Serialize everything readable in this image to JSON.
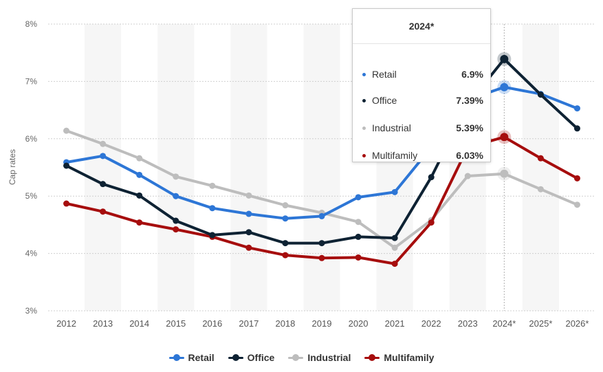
{
  "chart_data": {
    "type": "line",
    "ylabel": "Cap rates",
    "ylim": [
      3,
      8
    ],
    "yticks": [
      "3%",
      "4%",
      "5%",
      "6%",
      "7%",
      "8%"
    ],
    "yticks_values": [
      3,
      4,
      5,
      6,
      7,
      8
    ],
    "categories": [
      "2012",
      "2013",
      "2014",
      "2015",
      "2016",
      "2017",
      "2018",
      "2019",
      "2020",
      "2021",
      "2022",
      "2023",
      "2024*",
      "2025*",
      "2026*"
    ],
    "grid": true,
    "legend_position": "bottom-center",
    "series": [
      {
        "name": "Retail",
        "color": "#2d76d6",
        "values": [
          5.59,
          5.7,
          5.37,
          5.0,
          4.79,
          4.69,
          4.61,
          4.65,
          4.98,
          5.07,
          5.85,
          6.68,
          6.9,
          6.78,
          6.53
        ]
      },
      {
        "name": "Office",
        "color": "#0e2233",
        "values": [
          5.53,
          5.21,
          5.01,
          4.57,
          4.32,
          4.37,
          4.18,
          4.18,
          4.29,
          4.27,
          5.33,
          6.6,
          7.39,
          6.77,
          6.18
        ]
      },
      {
        "name": "Industrial",
        "color": "#bdbdbd",
        "values": [
          6.14,
          5.91,
          5.66,
          5.34,
          5.18,
          5.01,
          4.84,
          4.71,
          4.55,
          4.1,
          4.58,
          5.35,
          5.39,
          5.12,
          4.85
        ]
      },
      {
        "name": "Multifamily",
        "color": "#a60d0d",
        "values": [
          4.87,
          4.73,
          4.54,
          4.42,
          4.29,
          4.1,
          3.97,
          3.92,
          3.93,
          3.82,
          4.54,
          5.85,
          6.03,
          5.66,
          5.31
        ]
      }
    ]
  },
  "tooltip": {
    "title": "2024*",
    "rows": [
      {
        "label": "Retail",
        "value": "6.9%",
        "color": "#2d76d6"
      },
      {
        "label": "Office",
        "value": "7.39%",
        "color": "#0e2233"
      },
      {
        "label": "Industrial",
        "value": "5.39%",
        "color": "#bdbdbd"
      },
      {
        "label": "Multifamily",
        "value": "6.03%",
        "color": "#a60d0d"
      }
    ]
  },
  "legend": {
    "items": [
      {
        "label": "Retail",
        "color": "#2d76d6"
      },
      {
        "label": "Office",
        "color": "#0e2233"
      },
      {
        "label": "Industrial",
        "color": "#bdbdbd"
      },
      {
        "label": "Multifamily",
        "color": "#a60d0d"
      }
    ]
  }
}
